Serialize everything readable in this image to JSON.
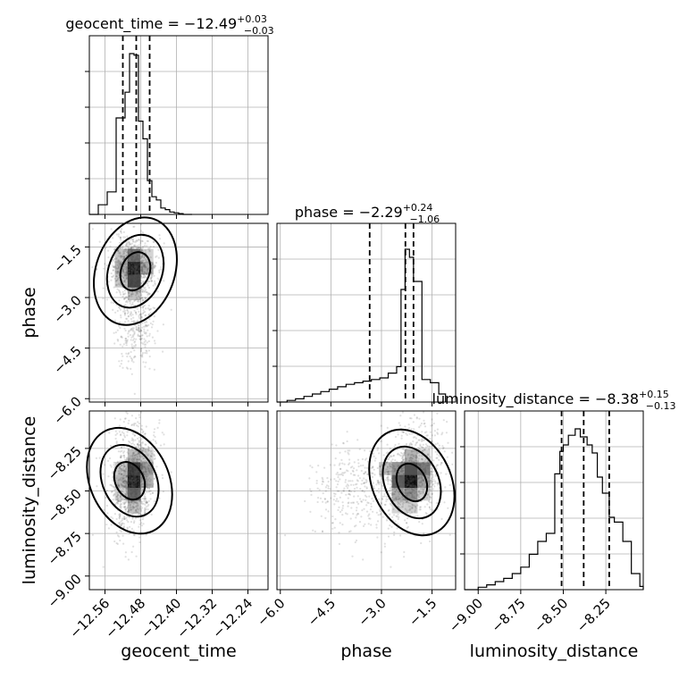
{
  "chart_data": {
    "type": "corner",
    "parameters": [
      "geocent_time",
      "phase",
      "luminosity_distance"
    ],
    "xlabels": [
      "geocent_time",
      "phase",
      "luminosity_distance"
    ],
    "ylabels": [
      "phase",
      "luminosity_distance"
    ],
    "titles": [
      {
        "param": "geocent_time",
        "text": "geocent_time = −12.49",
        "plus": "+0.03",
        "minus": "−0.03"
      },
      {
        "param": "phase",
        "text": "phase = −2.29",
        "plus": "+0.24",
        "minus": "−1.06"
      },
      {
        "param": "luminosity_distance",
        "text": "luminosity_distance = −8.38",
        "plus": "+0.15",
        "minus": "−0.13"
      }
    ],
    "ranges": {
      "geocent_time": [
        -12.595,
        -12.195
      ],
      "phase": [
        -6.1,
        -0.8
      ],
      "luminosity_distance": [
        -9.08,
        -8.03
      ]
    },
    "ticks": {
      "geocent_time": {
        "values": [
          -12.56,
          -12.48,
          -12.4,
          -12.32,
          -12.24
        ],
        "labels": [
          "−12.56",
          "−12.48",
          "−12.40",
          "−12.32",
          "−12.24"
        ]
      },
      "phase": {
        "values": [
          -6.0,
          -4.5,
          -3.0,
          -1.5
        ],
        "labels": [
          "−6.0",
          "−4.5",
          "−3.0",
          "−1.5"
        ]
      },
      "luminosity_distance": {
        "values": [
          -9.0,
          -8.75,
          -8.5,
          -8.25
        ],
        "labels": [
          "−9.00",
          "−8.75",
          "−8.50",
          "−8.25"
        ]
      }
    },
    "quantiles": {
      "geocent_time": [
        -12.52,
        -12.49,
        -12.46
      ],
      "phase": [
        -3.35,
        -2.29,
        -2.05
      ],
      "luminosity_distance": [
        -8.51,
        -8.38,
        -8.23
      ]
    },
    "histograms": {
      "geocent_time": {
        "edges": [
          -12.595,
          -12.575,
          -12.555,
          -12.535,
          -12.515,
          -12.505,
          -12.495,
          -12.485,
          -12.475,
          -12.465,
          -12.455,
          -12.445,
          -12.435,
          -12.425,
          -12.415,
          -12.405,
          -12.395,
          -12.385,
          -12.365
        ],
        "counts": [
          0,
          0.06,
          0.14,
          0.6,
          0.76,
          1.0,
          0.99,
          0.58,
          0.47,
          0.21,
          0.11,
          0.09,
          0.04,
          0.03,
          0.015,
          0.01,
          0.005,
          0
        ]
      },
      "phase": {
        "edges": [
          -6.1,
          -5.8,
          -5.55,
          -5.3,
          -5.05,
          -4.8,
          -4.55,
          -4.3,
          -4.05,
          -3.8,
          -3.55,
          -3.3,
          -3.05,
          -2.8,
          -2.55,
          -2.42,
          -2.3,
          -2.17,
          -2.05,
          -1.8,
          -1.55,
          -1.3,
          -1.1
        ],
        "counts": [
          0,
          0.01,
          0.02,
          0.035,
          0.05,
          0.065,
          0.08,
          0.095,
          0.11,
          0.12,
          0.13,
          0.14,
          0.15,
          0.18,
          0.22,
          0.7,
          0.95,
          0.9,
          0.75,
          0.14,
          0.12,
          0.05
        ]
      },
      "luminosity_distance": {
        "edges": [
          -9.08,
          -9.0,
          -8.95,
          -8.9,
          -8.85,
          -8.8,
          -8.75,
          -8.7,
          -8.65,
          -8.6,
          -8.55,
          -8.52,
          -8.5,
          -8.47,
          -8.43,
          -8.4,
          -8.36,
          -8.33,
          -8.3,
          -8.27,
          -8.23,
          -8.2,
          -8.15,
          -8.1,
          -8.05,
          -8.03
        ],
        "counts": [
          0,
          0.015,
          0.03,
          0.05,
          0.07,
          0.1,
          0.14,
          0.22,
          0.3,
          0.35,
          0.72,
          0.86,
          0.9,
          0.96,
          1.0,
          0.95,
          0.9,
          0.85,
          0.7,
          0.6,
          0.45,
          0.42,
          0.3,
          0.1,
          0.02
        ]
      }
    },
    "density_modes": [
      {
        "x": "geocent_time",
        "y": "phase",
        "center": [
          -12.492,
          -2.22
        ]
      },
      {
        "x": "geocent_time",
        "y": "luminosity_distance",
        "center": [
          -12.505,
          -8.44
        ]
      },
      {
        "x": "phase",
        "y": "luminosity_distance",
        "center": [
          -2.1,
          -8.45
        ]
      }
    ],
    "grid": true
  }
}
